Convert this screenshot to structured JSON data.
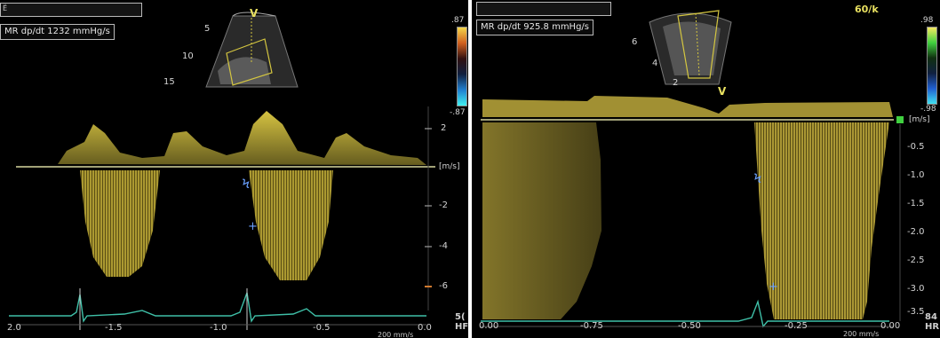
{
  "left": {
    "header_tag": "Ё",
    "measurement": "MR dp/dt  1232 mmHg/s",
    "sector_v": "V",
    "depth_marks": [
      "5",
      "10",
      "15"
    ],
    "colorbar_top": ".87",
    "colorbar_bottom": "-.87",
    "velocity_labels": [
      "2",
      "[m/s]",
      "-2",
      "-4",
      "-6"
    ],
    "unit_label": "[m/s]",
    "time_labels": [
      "2.0",
      "-1.5",
      "-1.0",
      "-0.5",
      "0.0"
    ],
    "sweep_label": "200 mm/s",
    "hr_label": "5(\nHF"
  },
  "right": {
    "measurement": "MR dp/dt  925.8 mmHg/s",
    "rate": "60/k",
    "sector_v": "V",
    "depth_marks": [
      "6",
      "4",
      "2"
    ],
    "colorbar_top": ".98",
    "colorbar_bottom": "-.98",
    "velocity_labels": [
      "[m/s]",
      "-0.5",
      "-1.0",
      "-1.5",
      "-2.0",
      "-2.5",
      "-3.0",
      "-3.5"
    ],
    "time_labels": [
      "0.00",
      "-0.75",
      "-0.50",
      "-0.25",
      "0.00"
    ],
    "sweep_label": "200 mm/s",
    "hr_label": "84\nHR"
  },
  "colors": {
    "doppler_yellow": "#e1cd45",
    "baseline": "#d8d8a0",
    "ecg": "#3fc0a8",
    "cursor_blue": "#6aa0ff",
    "bg": "#000000"
  }
}
